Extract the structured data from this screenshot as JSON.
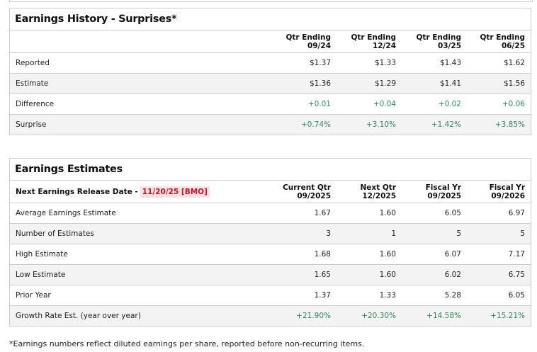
{
  "history": {
    "title": "Earnings History - Surprises*",
    "columns": [
      {
        "l1": "Qtr Ending",
        "l2": "09/24"
      },
      {
        "l1": "Qtr Ending",
        "l2": "12/24"
      },
      {
        "l1": "Qtr Ending",
        "l2": "03/25"
      },
      {
        "l1": "Qtr Ending",
        "l2": "06/25"
      }
    ],
    "rows": [
      {
        "label": "Reported",
        "values": [
          "$1.37",
          "$1.33",
          "$1.43",
          "$1.62"
        ]
      },
      {
        "label": "Estimate",
        "values": [
          "$1.36",
          "$1.29",
          "$1.41",
          "$1.56"
        ]
      },
      {
        "label": "Difference",
        "values": [
          "+0.01",
          "+0.04",
          "+0.02",
          "+0.06"
        ]
      },
      {
        "label": "Surprise",
        "values": [
          "+0.74%",
          "+3.10%",
          "+1.42%",
          "+3.85%"
        ]
      }
    ]
  },
  "estimates": {
    "title": "Earnings Estimates",
    "release_label": "Next Earnings Release Date -",
    "release_date": "11/20/25 [BMO]",
    "columns": [
      {
        "l1": "Current Qtr",
        "l2": "09/2025"
      },
      {
        "l1": "Next Qtr",
        "l2": "12/2025"
      },
      {
        "l1": "Fiscal Yr",
        "l2": "09/2025"
      },
      {
        "l1": "Fiscal Yr",
        "l2": "09/2026"
      }
    ],
    "rows": [
      {
        "label": "Average Earnings Estimate",
        "values": [
          "1.67",
          "1.60",
          "6.05",
          "6.97"
        ]
      },
      {
        "label": "Number of Estimates",
        "values": [
          "3",
          "1",
          "5",
          "5"
        ]
      },
      {
        "label": "High Estimate",
        "values": [
          "1.68",
          "1.60",
          "6.07",
          "7.17"
        ]
      },
      {
        "label": "Low Estimate",
        "values": [
          "1.65",
          "1.60",
          "6.02",
          "6.75"
        ]
      },
      {
        "label": "Prior Year",
        "values": [
          "1.37",
          "1.33",
          "5.28",
          "6.05"
        ]
      },
      {
        "label": "Growth Rate Est. (year over year)",
        "values": [
          "+21.90%",
          "+20.30%",
          "+14.58%",
          "+15.21%"
        ]
      }
    ]
  },
  "footnote": "*Earnings numbers reflect diluted earnings per share, reported before non-recurring items.",
  "colors": {
    "positive": "#2f8a5a",
    "release_date": "#c8102e",
    "release_bg": "#fde0e0"
  }
}
